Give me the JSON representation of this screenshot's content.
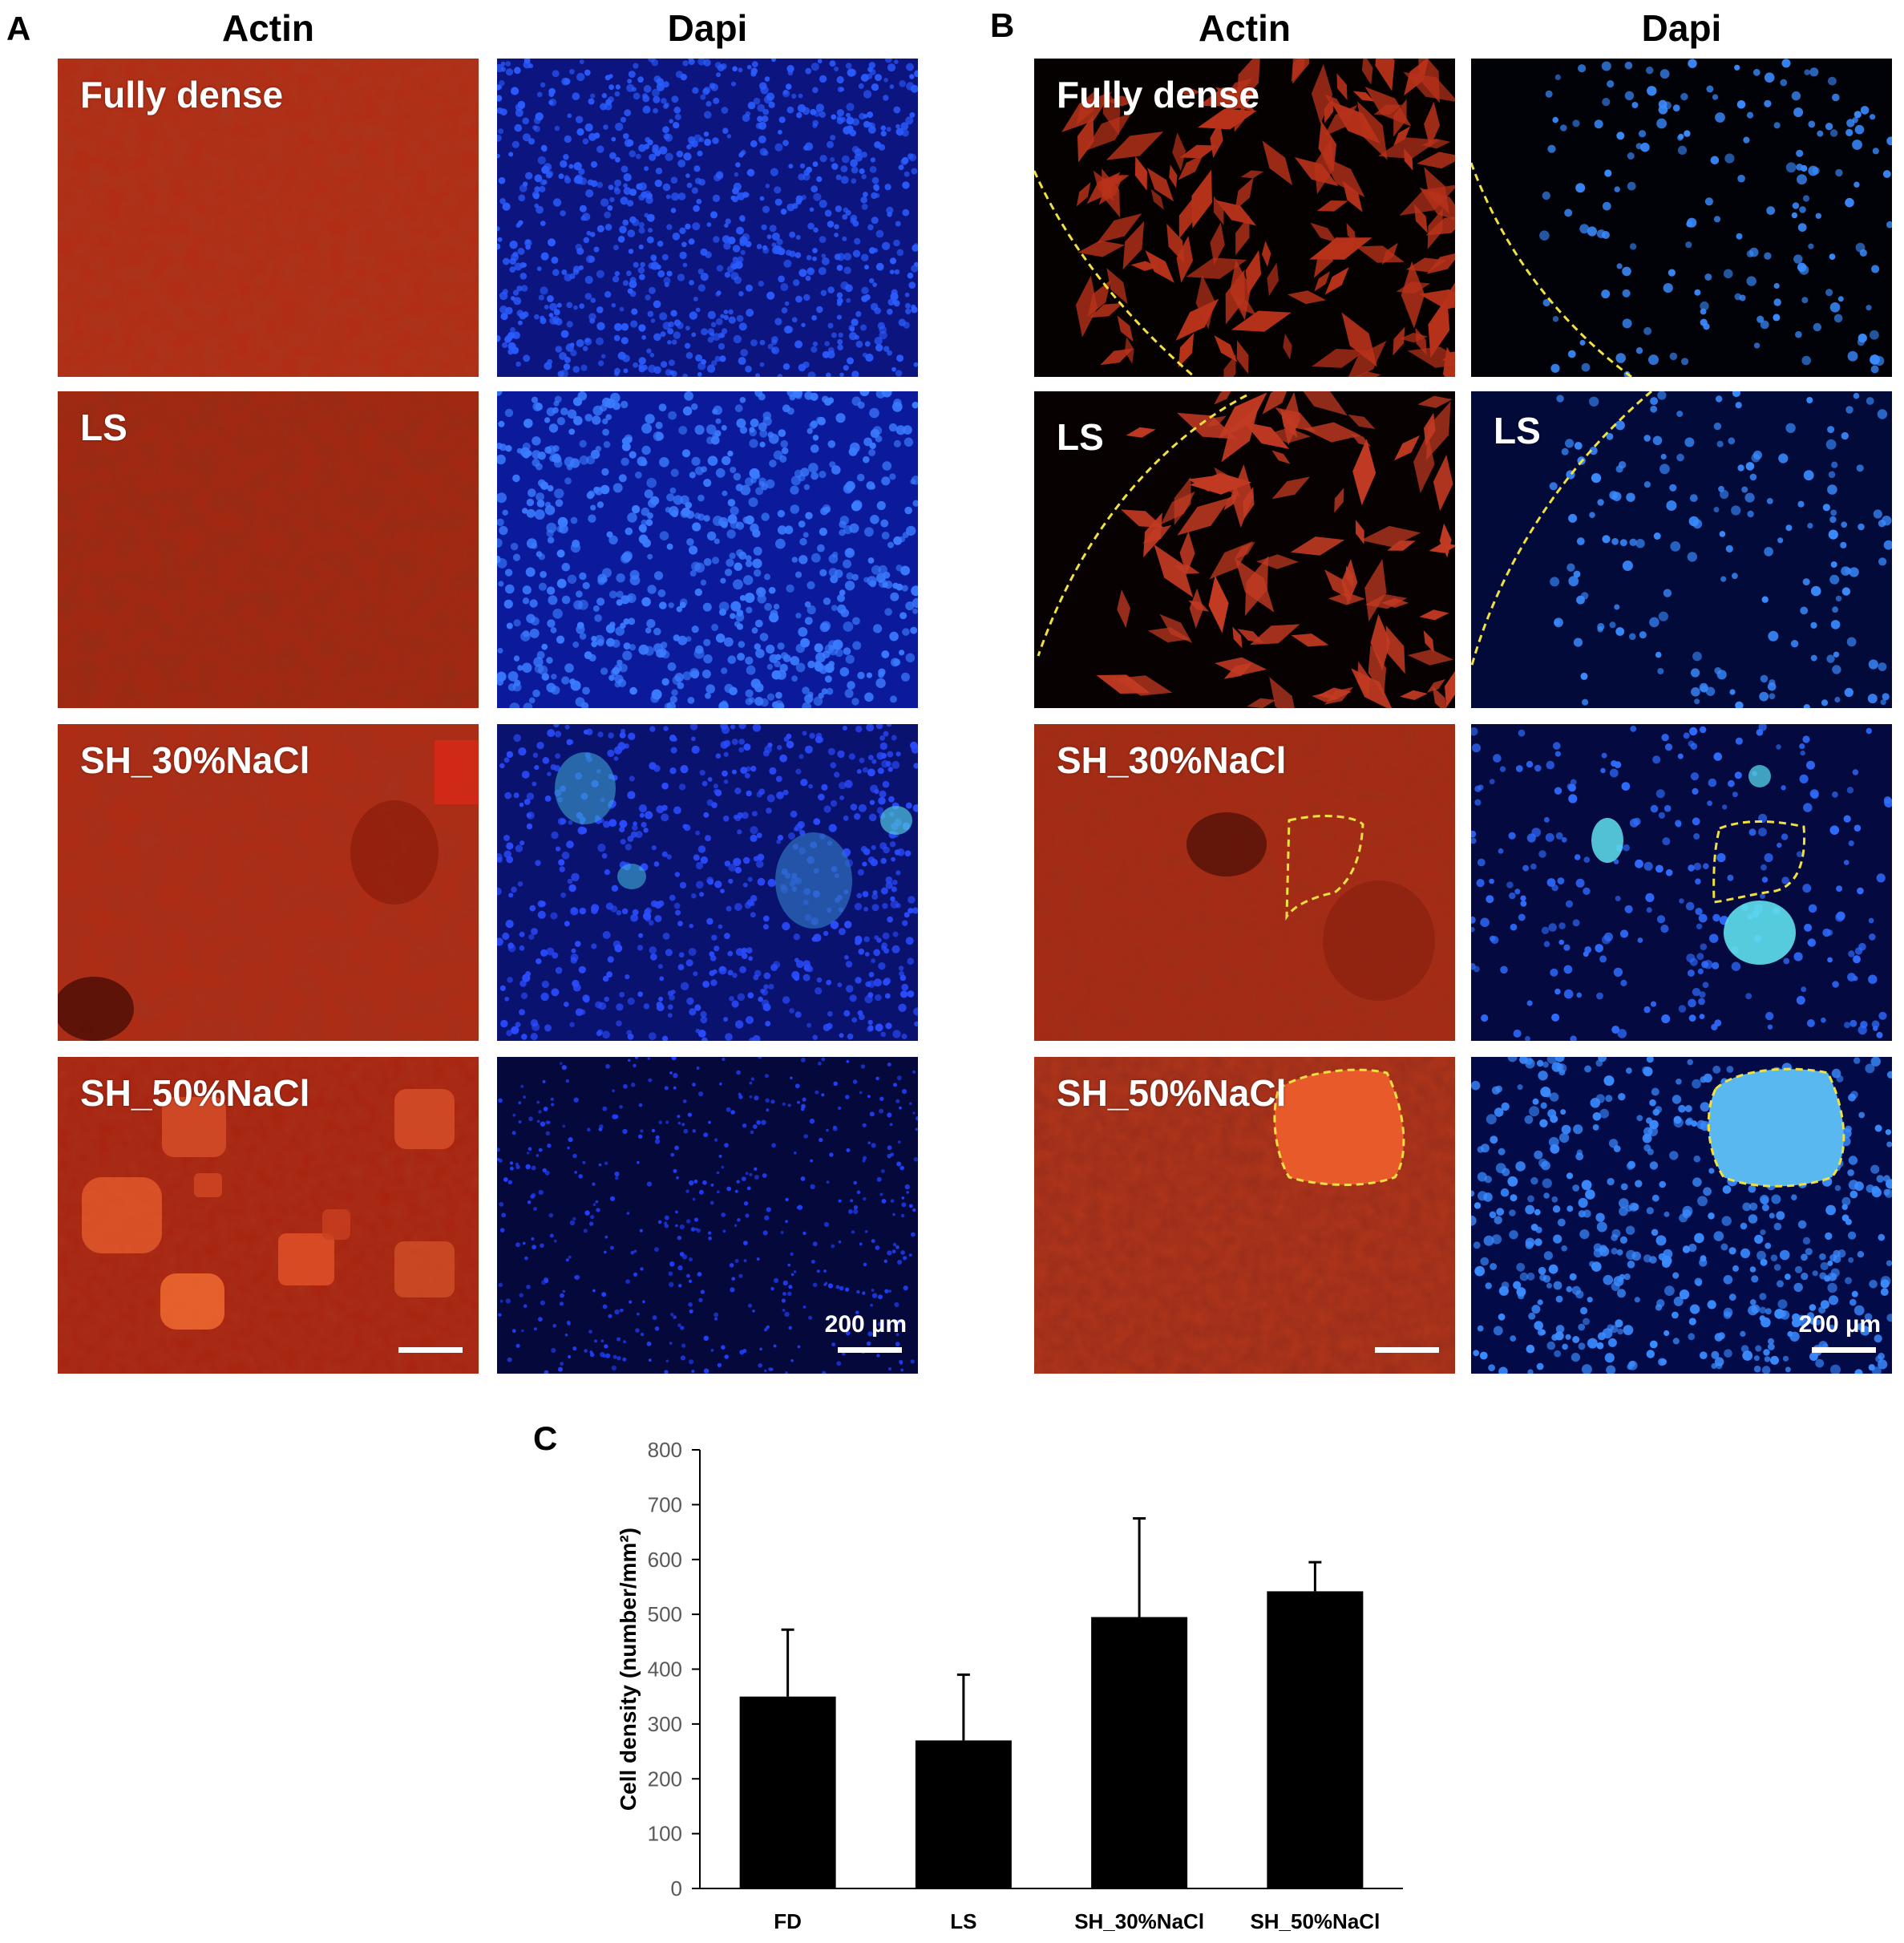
{
  "panels": {
    "a": {
      "letter": "A",
      "col_actin": "Actin",
      "col_dapi": "Dapi",
      "rows": [
        "Fully dense",
        "LS",
        "SH_30%NaCl",
        "SH_50%NaCl"
      ],
      "scale_label": "200 µm"
    },
    "b": {
      "letter": "B",
      "col_actin": "Actin",
      "col_dapi": "Dapi",
      "rows": [
        "Fully dense",
        "LS",
        "SH_30%NaCl",
        "SH_50%NaCl"
      ],
      "dapi_row_label_ls": "LS",
      "scale_label": "200 µm"
    },
    "c": {
      "letter": "C"
    }
  },
  "colors": {
    "actin": "#b52a12",
    "dapi": "#0d1a8a",
    "outline": "#f0e040",
    "bar": "#000000"
  },
  "chart_data": {
    "type": "bar",
    "categories": [
      "FD",
      "LS",
      "SH_30%NaCl",
      "SH_50%NaCl"
    ],
    "values": [
      350,
      270,
      495,
      542
    ],
    "errors": [
      122,
      120,
      180,
      53
    ],
    "title": "",
    "xlabel": "",
    "ylabel": "Cell density (number/mm²)",
    "ylim": [
      0,
      800
    ],
    "yticks": [
      0,
      100,
      200,
      300,
      400,
      500,
      600,
      700,
      800
    ],
    "grid": false,
    "legend": "none"
  }
}
